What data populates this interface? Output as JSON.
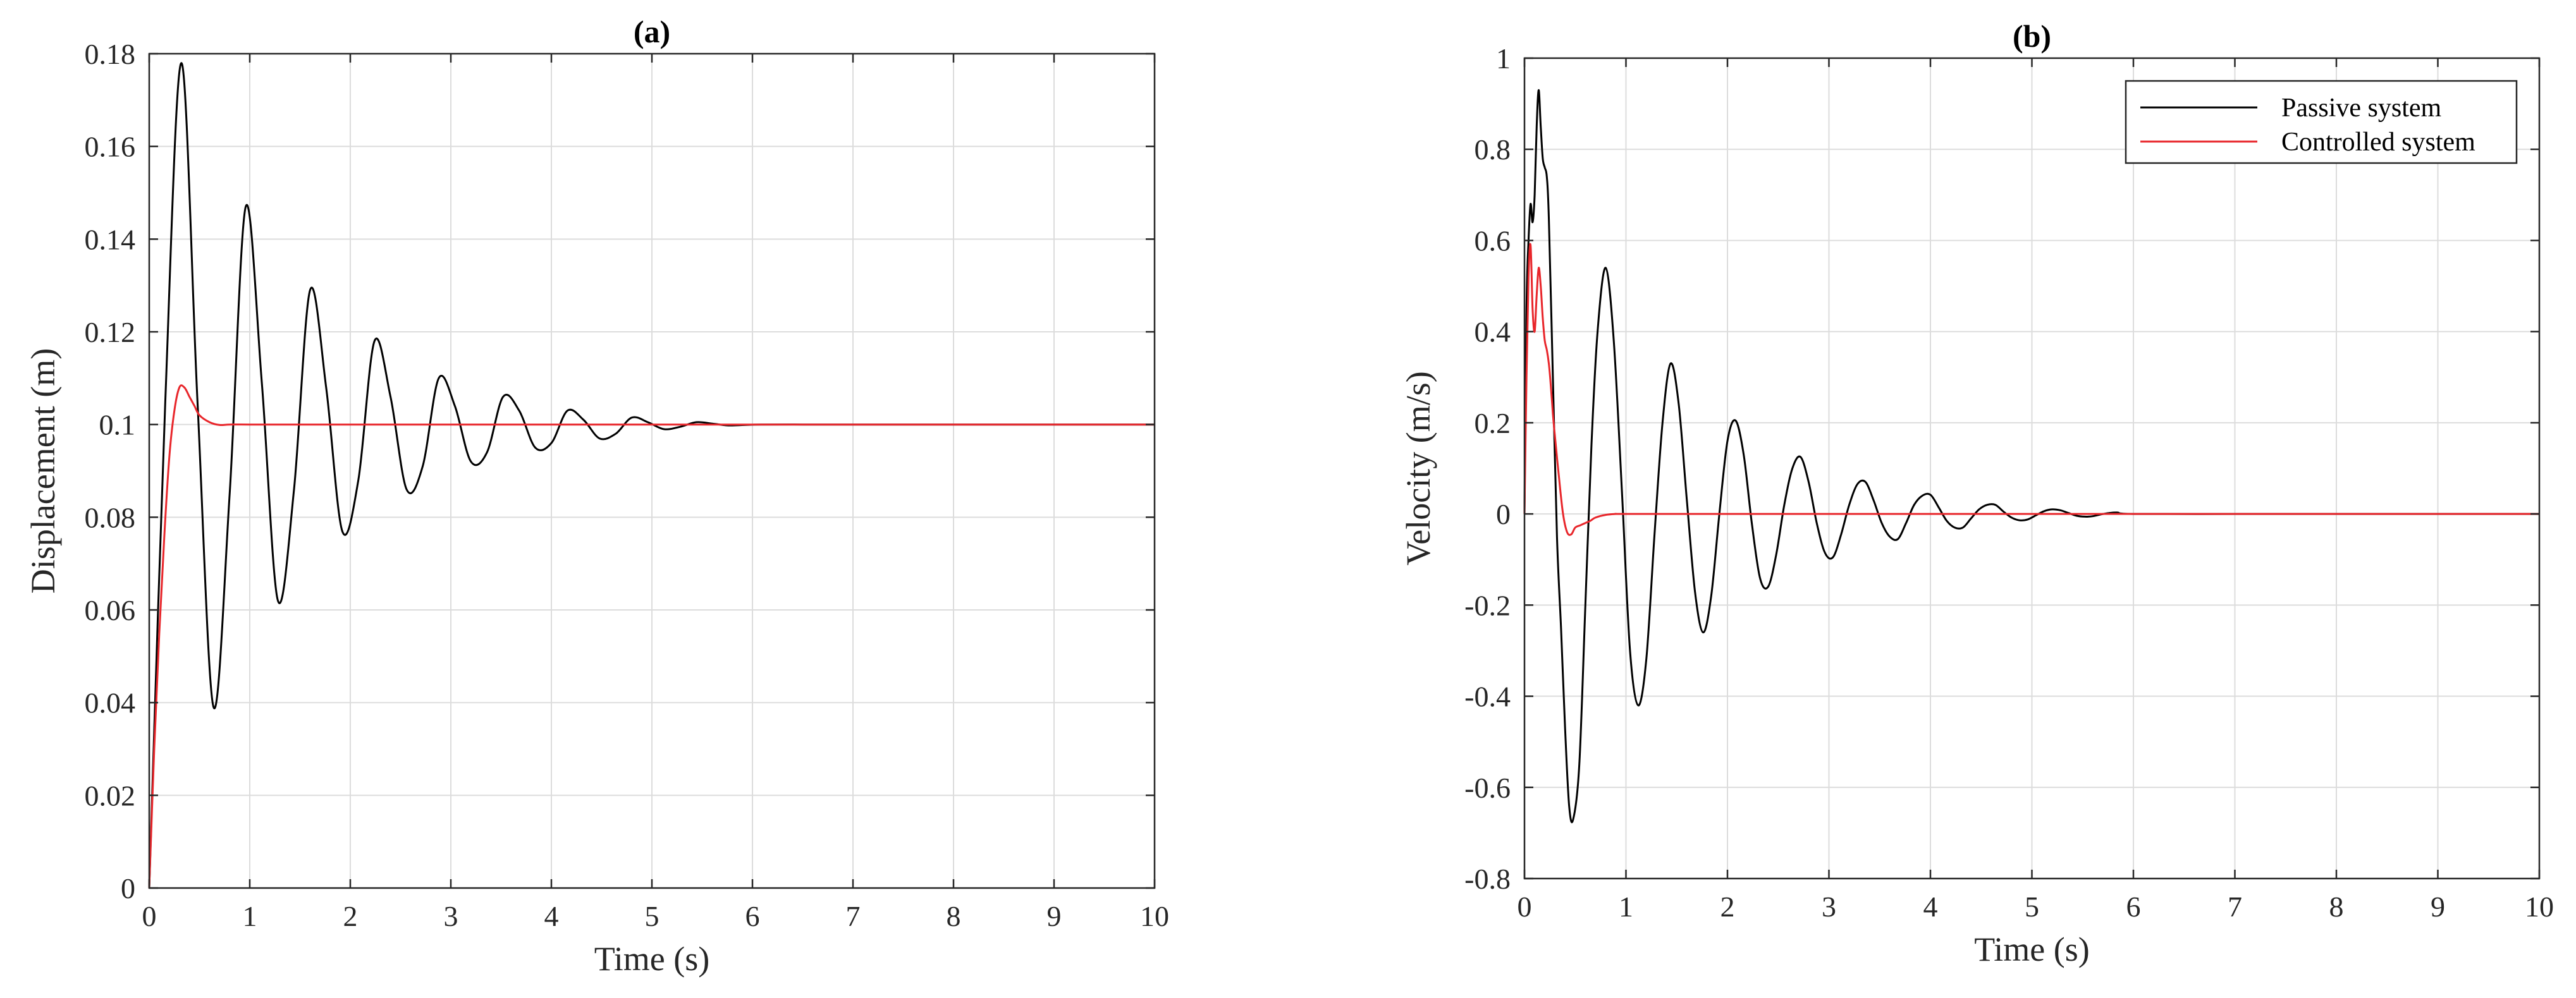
{
  "chart_data": [
    {
      "type": "line",
      "title": "(a)",
      "xlabel": "Time (s)",
      "ylabel": "Displacement (m)",
      "xlim": [
        0,
        10
      ],
      "ylim": [
        0,
        0.18
      ],
      "xticks": [
        0,
        1,
        2,
        3,
        4,
        5,
        6,
        7,
        8,
        9,
        10
      ],
      "yticks": [
        0,
        0.02,
        0.04,
        0.06,
        0.08,
        0.1,
        0.12,
        0.14,
        0.16,
        0.18
      ],
      "xtick_labels": [
        "0",
        "1",
        "2",
        "3",
        "4",
        "5",
        "6",
        "7",
        "8",
        "9",
        "10"
      ],
      "ytick_labels": [
        "0",
        "0.02",
        "0.04",
        "0.06",
        "0.08",
        "0.1",
        "0.12",
        "0.14",
        "0.16",
        "0.18"
      ],
      "grid": true,
      "series": [
        {
          "color": "#000000",
          "x": [
            0,
            0.16,
            0.32,
            0.48,
            0.64,
            0.8,
            0.96,
            1.12,
            1.28,
            1.44,
            1.6,
            1.76,
            1.92,
            2.08,
            2.24,
            2.4,
            2.56,
            2.72,
            2.88,
            3.04,
            3.2,
            3.36,
            3.52,
            3.68,
            3.84,
            4.0,
            4.16,
            4.32,
            4.48,
            4.64,
            4.8,
            4.96,
            5.12,
            5.28,
            5.44,
            5.6,
            5.76,
            5.92,
            6.08,
            6.5,
            7,
            8,
            9,
            10
          ],
          "values": [
            0,
            0.105,
            0.178,
            0.105,
            0.039,
            0.085,
            0.147,
            0.109,
            0.062,
            0.086,
            0.129,
            0.108,
            0.077,
            0.088,
            0.118,
            0.106,
            0.086,
            0.091,
            0.11,
            0.104,
            0.092,
            0.094,
            0.106,
            0.103,
            0.095,
            0.096,
            0.103,
            0.101,
            0.097,
            0.098,
            0.1015,
            0.1005,
            0.099,
            0.0995,
            0.1005,
            0.1002,
            0.0998,
            0.0999,
            0.1,
            0.1,
            0.1,
            0.1,
            0.1,
            0.1
          ]
        },
        {
          "color": "#e8262b",
          "x": [
            0,
            0.05,
            0.1,
            0.15,
            0.2,
            0.25,
            0.3,
            0.35,
            0.4,
            0.45,
            0.5,
            0.6,
            0.7,
            0.8,
            1,
            2,
            5,
            10
          ],
          "values": [
            0,
            0.03,
            0.055,
            0.076,
            0.093,
            0.103,
            0.108,
            0.108,
            0.106,
            0.104,
            0.102,
            0.1005,
            0.0999,
            0.1,
            0.1,
            0.1,
            0.1,
            0.1
          ]
        }
      ]
    },
    {
      "type": "line",
      "title": "(b)",
      "xlabel": "Time (s)",
      "ylabel": "Velocity (m/s)",
      "xlim": [
        0,
        10
      ],
      "ylim": [
        -0.8,
        1
      ],
      "xticks": [
        0,
        1,
        2,
        3,
        4,
        5,
        6,
        7,
        8,
        9,
        10
      ],
      "yticks": [
        -0.8,
        -0.6,
        -0.4,
        -0.2,
        0,
        0.2,
        0.4,
        0.6,
        0.8,
        1
      ],
      "xtick_labels": [
        "0",
        "1",
        "2",
        "3",
        "4",
        "5",
        "6",
        "7",
        "8",
        "9",
        "10"
      ],
      "ytick_labels": [
        "-0.8",
        "-0.6",
        "-0.4",
        "-0.2",
        "0",
        "0.2",
        "0.4",
        "0.6",
        "0.8",
        "1"
      ],
      "grid": true,
      "legend": "top-right",
      "series": [
        {
          "name": "Passive system",
          "color": "#000000",
          "x": [
            0,
            0.02,
            0.04,
            0.06,
            0.08,
            0.1,
            0.12,
            0.14,
            0.16,
            0.18,
            0.2,
            0.22,
            0.24,
            0.28,
            0.32,
            0.36,
            0.4,
            0.44,
            0.48,
            0.54,
            0.6,
            0.66,
            0.72,
            0.8,
            0.88,
            0.96,
            1.04,
            1.12,
            1.2,
            1.28,
            1.36,
            1.44,
            1.52,
            1.6,
            1.68,
            1.76,
            1.84,
            1.92,
            2.0,
            2.08,
            2.16,
            2.24,
            2.32,
            2.4,
            2.48,
            2.56,
            2.64,
            2.72,
            2.8,
            2.88,
            2.96,
            3.04,
            3.12,
            3.2,
            3.28,
            3.36,
            3.44,
            3.52,
            3.6,
            3.68,
            3.76,
            3.84,
            3.92,
            4.0,
            4.08,
            4.16,
            4.24,
            4.32,
            4.4,
            4.48,
            4.56,
            4.64,
            4.72,
            4.8,
            4.88,
            4.96,
            5.04,
            5.12,
            5.2,
            5.28,
            5.36,
            5.44,
            5.52,
            5.6,
            5.68,
            5.76,
            5.84,
            6.0,
            7,
            8,
            9,
            10
          ],
          "values": [
            0,
            0.45,
            0.6,
            0.68,
            0.64,
            0.7,
            0.85,
            0.93,
            0.85,
            0.78,
            0.76,
            0.74,
            0.65,
            0.3,
            -0.05,
            -0.25,
            -0.47,
            -0.64,
            -0.67,
            -0.55,
            -0.2,
            0.15,
            0.4,
            0.54,
            0.38,
            0.05,
            -0.3,
            -0.42,
            -0.32,
            -0.05,
            0.2,
            0.33,
            0.24,
            0.03,
            -0.17,
            -0.26,
            -0.18,
            0.0,
            0.16,
            0.205,
            0.13,
            -0.02,
            -0.14,
            -0.16,
            -0.09,
            0.02,
            0.1,
            0.125,
            0.07,
            -0.02,
            -0.085,
            -0.095,
            -0.045,
            0.02,
            0.065,
            0.07,
            0.03,
            -0.02,
            -0.05,
            -0.055,
            -0.02,
            0.02,
            0.04,
            0.042,
            0.015,
            -0.015,
            -0.03,
            -0.03,
            -0.01,
            0.01,
            0.02,
            0.02,
            0.005,
            -0.008,
            -0.014,
            -0.012,
            -0.003,
            0.006,
            0.01,
            0.008,
            0.002,
            -0.004,
            -0.006,
            -0.005,
            -0.001,
            0.002,
            0.003,
            0,
            0,
            0,
            0,
            0
          ]
        },
        {
          "name": "Controlled system",
          "color": "#e8262b",
          "x": [
            0,
            0.02,
            0.04,
            0.06,
            0.08,
            0.1,
            0.12,
            0.14,
            0.16,
            0.18,
            0.2,
            0.22,
            0.24,
            0.26,
            0.28,
            0.3,
            0.34,
            0.38,
            0.42,
            0.46,
            0.5,
            0.55,
            0.6,
            0.65,
            0.7,
            0.8,
            0.9,
            1.0,
            2,
            5,
            10
          ],
          "values": [
            0,
            0.3,
            0.52,
            0.59,
            0.45,
            0.4,
            0.48,
            0.54,
            0.5,
            0.43,
            0.38,
            0.36,
            0.33,
            0.28,
            0.22,
            0.17,
            0.08,
            0.0,
            -0.04,
            -0.045,
            -0.03,
            -0.025,
            -0.02,
            -0.015,
            -0.008,
            -0.002,
            0,
            0,
            0,
            0,
            0
          ]
        }
      ]
    }
  ]
}
